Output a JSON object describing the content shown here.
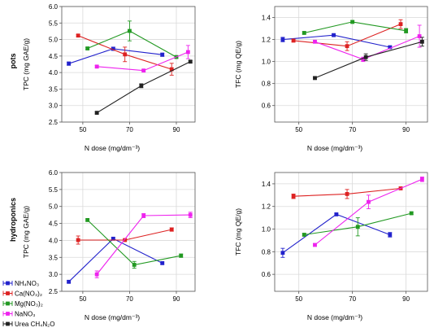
{
  "row_labels": [
    "pots",
    "hydroponics"
  ],
  "legend": [
    {
      "key": "nh4no3",
      "label": "NH₄NO₃",
      "color": "#2222cc"
    },
    {
      "key": "cano3",
      "label": "Ca(NO₃)₂",
      "color": "#dd2222"
    },
    {
      "key": "mgno3",
      "label": "Mg(NO₃)₂",
      "color": "#229922"
    },
    {
      "key": "nano3",
      "label": "NaNO₃",
      "color": "#ee22ee"
    },
    {
      "key": "urea",
      "label": "Urea CH₄N₂O",
      "color": "#222222"
    }
  ],
  "chart_data": [
    {
      "type": "line",
      "row": "pots",
      "xlabel": "N dose (mg/dm⁻³)",
      "ylabel": "TPC (mg GAE/g)",
      "xlim": [
        41,
        98
      ],
      "ylim": [
        2.5,
        6.0
      ],
      "xticks": [
        50,
        70,
        90
      ],
      "yticks": [
        "2.5",
        "3.0",
        "3.5",
        "4.0",
        "4.5",
        "5.0",
        "5.5",
        "6.0"
      ],
      "grid": true,
      "series": [
        {
          "key": "nh4no3",
          "x": [
            44,
            63,
            84
          ],
          "y": [
            4.27,
            4.72,
            4.54
          ],
          "err": [
            0.05,
            0.05,
            0.05
          ]
        },
        {
          "key": "cano3",
          "x": [
            48,
            68,
            88
          ],
          "y": [
            5.12,
            4.55,
            4.1
          ],
          "err": [
            0.03,
            0.22,
            0.18
          ]
        },
        {
          "key": "mgno3",
          "x": [
            52,
            70,
            90
          ],
          "y": [
            4.73,
            5.26,
            4.47
          ],
          "err": [
            0.03,
            0.3,
            0.03
          ]
        },
        {
          "key": "nano3",
          "x": [
            56,
            76,
            95
          ],
          "y": [
            4.18,
            4.06,
            4.62
          ],
          "err": [
            0.03,
            0.03,
            0.2
          ]
        },
        {
          "key": "urea",
          "x": [
            56,
            75,
            96
          ],
          "y": [
            2.78,
            3.6,
            4.33
          ],
          "err": [
            0.03,
            0.06,
            0.03
          ]
        }
      ]
    },
    {
      "type": "line",
      "row": "pots",
      "xlabel": "N dose (mg/dm⁻³)",
      "ylabel": "TFC (mg QE/g)",
      "xlim": [
        41,
        98
      ],
      "ylim": [
        0.45,
        1.5
      ],
      "xticks": [
        50,
        70,
        90
      ],
      "yticks": [
        "0.6",
        "0.8",
        "1.0",
        "1.2",
        "1.4"
      ],
      "grid": true,
      "series": [
        {
          "key": "nh4no3",
          "x": [
            44,
            63,
            84
          ],
          "y": [
            1.2,
            1.24,
            1.13
          ],
          "err": [
            0.02,
            0.01,
            0.01
          ]
        },
        {
          "key": "cano3",
          "x": [
            48,
            68,
            88
          ],
          "y": [
            1.19,
            1.14,
            1.34
          ],
          "err": [
            0.01,
            0.04,
            0.04
          ]
        },
        {
          "key": "mgno3",
          "x": [
            52,
            70,
            90
          ],
          "y": [
            1.26,
            1.36,
            1.28
          ],
          "err": [
            0.01,
            0.01,
            0.02
          ]
        },
        {
          "key": "nano3",
          "x": [
            56,
            74,
            95
          ],
          "y": [
            1.18,
            1.02,
            1.23
          ],
          "err": [
            0.01,
            0.02,
            0.1
          ]
        },
        {
          "key": "urea",
          "x": [
            56,
            75,
            96
          ],
          "y": [
            0.85,
            1.04,
            1.18
          ],
          "err": [
            0.01,
            0.03,
            0.04
          ]
        }
      ]
    },
    {
      "type": "line",
      "row": "hydroponics",
      "xlabel": "N dose (mg/dm⁻³)",
      "ylabel": "TPC (mg GAE/g)",
      "xlim": [
        41,
        98
      ],
      "ylim": [
        2.5,
        6.0
      ],
      "xticks": [
        50,
        70,
        90
      ],
      "yticks": [
        "2.5",
        "3.0",
        "3.5",
        "4.0",
        "4.5",
        "5.0",
        "5.5",
        "6.0"
      ],
      "grid": true,
      "series": [
        {
          "key": "nh4no3",
          "x": [
            44,
            63,
            84
          ],
          "y": [
            2.78,
            4.05,
            3.33
          ],
          "err": [
            0.03,
            0.03,
            0.03
          ]
        },
        {
          "key": "cano3",
          "x": [
            48,
            68,
            88
          ],
          "y": [
            4.01,
            4.01,
            4.32
          ],
          "err": [
            0.12,
            0.03,
            0.05
          ]
        },
        {
          "key": "mgno3",
          "x": [
            52,
            72,
            92
          ],
          "y": [
            4.6,
            3.28,
            3.55
          ],
          "err": [
            0.03,
            0.1,
            0.05
          ]
        },
        {
          "key": "nano3",
          "x": [
            56,
            76,
            96
          ],
          "y": [
            3.0,
            4.73,
            4.75
          ],
          "err": [
            0.1,
            0.06,
            0.08
          ]
        }
      ]
    },
    {
      "type": "line",
      "row": "hydroponics",
      "xlabel": "N dose (mg/dm⁻³)",
      "ylabel": "TFC (mg QE/g)",
      "xlim": [
        41,
        98
      ],
      "ylim": [
        0.45,
        1.5
      ],
      "xticks": [
        50,
        70,
        90
      ],
      "yticks": [
        "0.6",
        "0.8",
        "1.0",
        "1.2",
        "1.4"
      ],
      "grid": true,
      "series": [
        {
          "key": "nh4no3",
          "x": [
            44,
            64,
            84
          ],
          "y": [
            0.79,
            1.13,
            0.95
          ],
          "err": [
            0.04,
            0.01,
            0.02
          ]
        },
        {
          "key": "cano3",
          "x": [
            48,
            68,
            88
          ],
          "y": [
            1.29,
            1.31,
            1.36
          ],
          "err": [
            0.02,
            0.04,
            0.01
          ]
        },
        {
          "key": "mgno3",
          "x": [
            52,
            72,
            92
          ],
          "y": [
            0.95,
            1.02,
            1.14
          ],
          "err": [
            0.01,
            0.08,
            0.01
          ]
        },
        {
          "key": "nano3",
          "x": [
            56,
            76,
            96
          ],
          "y": [
            0.86,
            1.24,
            1.44
          ],
          "err": [
            0.01,
            0.06,
            0.02
          ]
        }
      ]
    }
  ]
}
